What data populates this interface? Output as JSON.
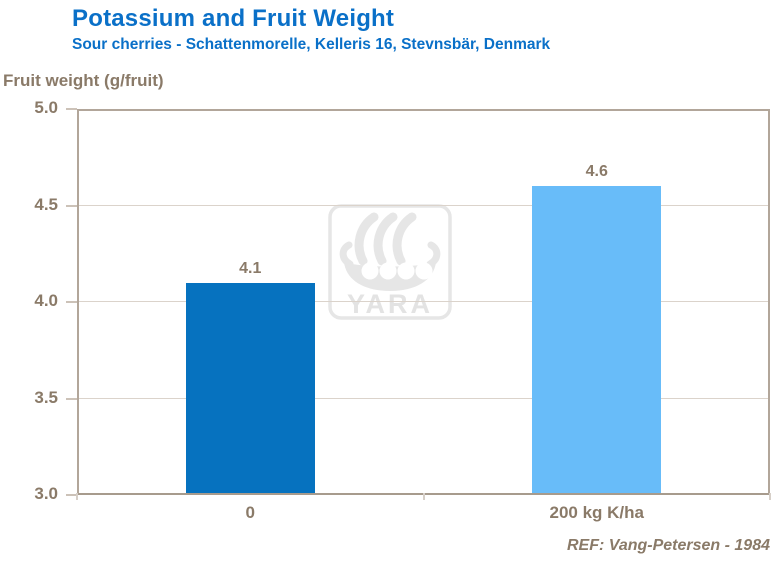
{
  "header": {
    "title": "Potassium and Fruit Weight",
    "subtitle": "Sour cherries - Schattenmorelle, Kelleris 16, Stevnsbär, Denmark"
  },
  "watermark": {
    "label": "YARA"
  },
  "footer": {
    "ref": "REF: Vang-Petersen - 1984"
  },
  "colors": {
    "title_blue": "#0A70C8",
    "text_brown": "#8A7A68",
    "bar_dark_blue": "#0672BF",
    "bar_light_blue": "#68BCF9",
    "frame": "#B2A69A",
    "gridline": "#DBD3CB",
    "watermark_gray": "#E6E6E6"
  },
  "chart_data": {
    "type": "bar",
    "title": "Potassium and Fruit Weight",
    "subtitle": "Sour cherries - Schattenmorelle, Kelleris 16, Stevnsbär, Denmark",
    "ylabel": "Fruit weight (g/fruit)",
    "xlabel": "",
    "categories": [
      "0",
      "200 kg K/ha"
    ],
    "values": [
      4.1,
      4.6
    ],
    "data_labels": [
      "4.1",
      "4.6"
    ],
    "bar_colors": [
      "#0672BF",
      "#68BCF9"
    ],
    "ylim": [
      3.0,
      5.0
    ],
    "yticks": [
      3.0,
      3.5,
      4.0,
      4.5,
      5.0
    ],
    "grid": true,
    "legend": false,
    "source": "REF: Vang-Petersen - 1984"
  }
}
